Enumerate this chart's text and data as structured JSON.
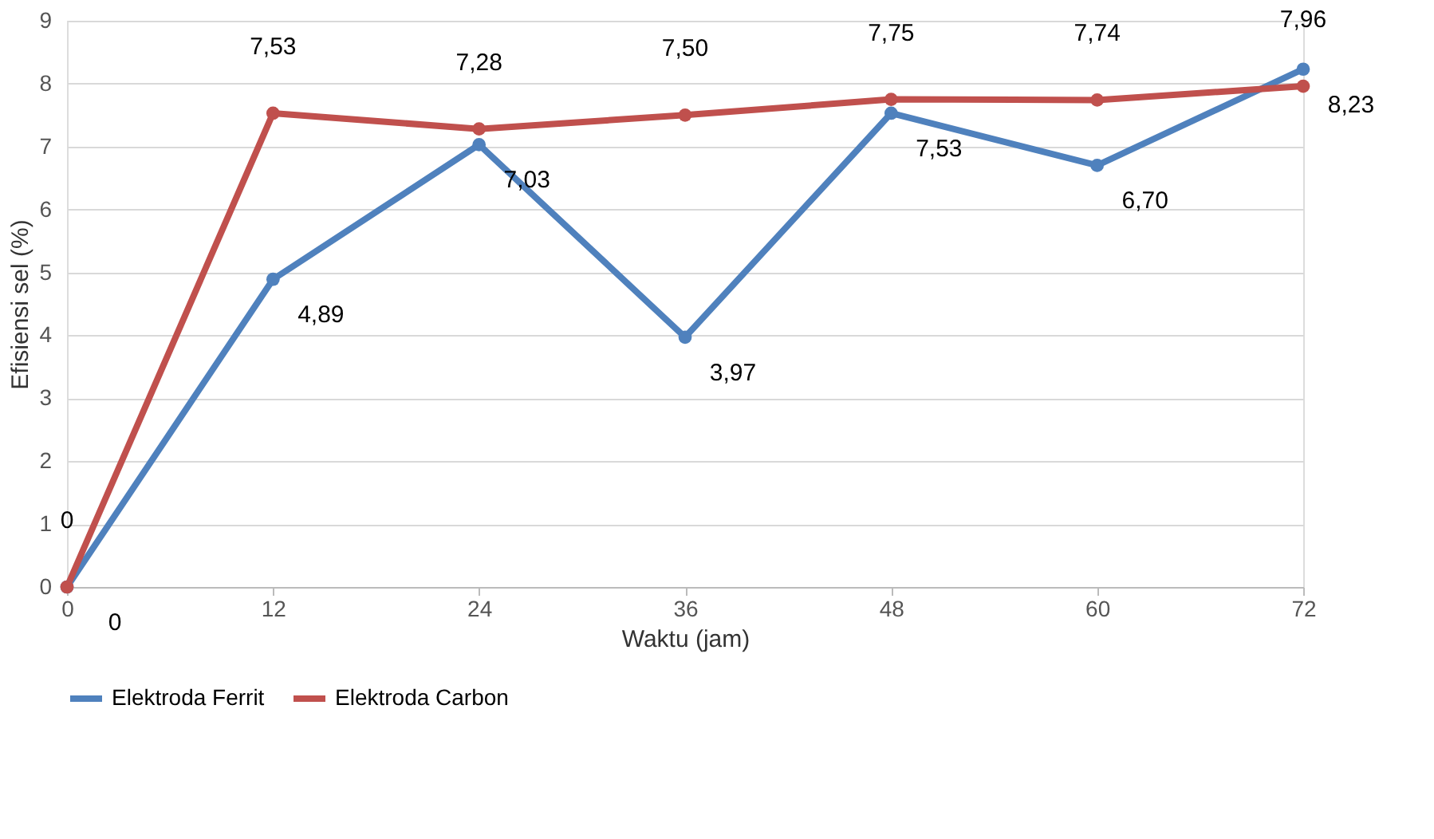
{
  "chart_data": {
    "type": "line",
    "xlabel": "Waktu (jam)",
    "ylabel": "Efisiensi sel (%)",
    "categories": [
      "0",
      "12",
      "24",
      "36",
      "48",
      "60",
      "72"
    ],
    "series": [
      {
        "name": "Elektroda Ferrit",
        "color": "#4f81bd",
        "values": [
          0,
          4.89,
          7.03,
          3.97,
          7.53,
          6.7,
          8.23
        ],
        "value_labels": [
          "0",
          "4,89",
          "7,03",
          "3,97",
          "7,53",
          "6,70",
          "8,23"
        ]
      },
      {
        "name": "Elektroda Carbon",
        "color": "#c0504d",
        "values": [
          0,
          7.53,
          7.28,
          7.5,
          7.75,
          7.74,
          7.96
        ],
        "value_labels": [
          "0",
          "7,53",
          "7,28",
          "7,50",
          "7,75",
          "7,74",
          "7,96"
        ]
      }
    ],
    "ylim": [
      0,
      9
    ],
    "yticks": [
      0,
      1,
      2,
      3,
      4,
      5,
      6,
      7,
      8,
      9
    ],
    "grid": "y",
    "legend": "bottom",
    "marker": "circle",
    "line_style": "solid"
  }
}
